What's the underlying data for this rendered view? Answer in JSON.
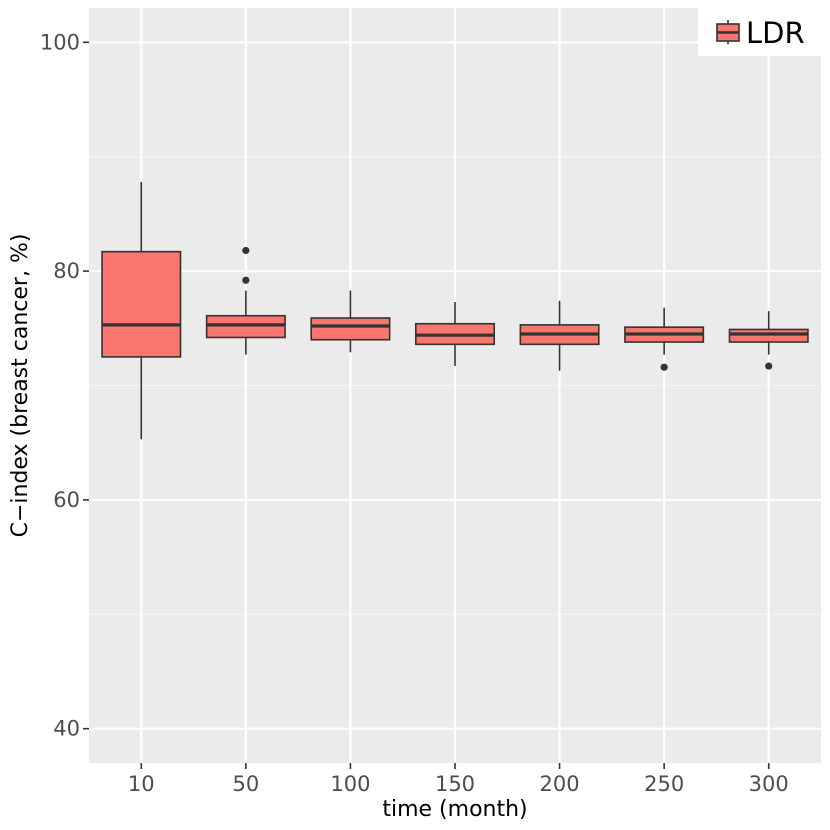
{
  "chart_data": {
    "type": "boxplot",
    "title": "",
    "xlabel": "time (month)",
    "ylabel": "C−index (breast cancer, %)",
    "categories": [
      "10",
      "50",
      "100",
      "150",
      "200",
      "250",
      "300"
    ],
    "ylim": [
      37,
      103
    ],
    "yticks": [
      40,
      60,
      80,
      100
    ],
    "grid": true,
    "legend": {
      "position": "top-right",
      "entries": [
        {
          "label": "LDR",
          "color": "#F8766D"
        }
      ]
    },
    "series": [
      {
        "name": "LDR",
        "boxes": [
          {
            "category": "10",
            "min": 65.3,
            "q1": 72.5,
            "median": 75.3,
            "q3": 81.7,
            "max": 87.8,
            "outliers": []
          },
          {
            "category": "50",
            "min": 72.7,
            "q1": 74.2,
            "median": 75.3,
            "q3": 76.1,
            "max": 78.3,
            "outliers": [
              79.2,
              81.8
            ]
          },
          {
            "category": "100",
            "min": 72.9,
            "q1": 74.0,
            "median": 75.2,
            "q3": 75.9,
            "max": 78.3,
            "outliers": []
          },
          {
            "category": "150",
            "min": 71.7,
            "q1": 73.6,
            "median": 74.4,
            "q3": 75.4,
            "max": 77.3,
            "outliers": []
          },
          {
            "category": "200",
            "min": 71.3,
            "q1": 73.6,
            "median": 74.5,
            "q3": 75.3,
            "max": 77.4,
            "outliers": []
          },
          {
            "category": "250",
            "min": 72.7,
            "q1": 73.8,
            "median": 74.5,
            "q3": 75.1,
            "max": 76.8,
            "outliers": [
              71.6
            ]
          },
          {
            "category": "300",
            "min": 72.7,
            "q1": 73.8,
            "median": 74.5,
            "q3": 74.9,
            "max": 76.5,
            "outliers": [
              71.7
            ]
          }
        ]
      }
    ]
  },
  "colors": {
    "panel_background": "#EBEBEB",
    "grid_major": "#FFFFFF",
    "grid_minor": "#F5F5F5",
    "box_fill": "#F8766D",
    "box_stroke": "#333333",
    "tick_text": "#4D4D4D"
  }
}
